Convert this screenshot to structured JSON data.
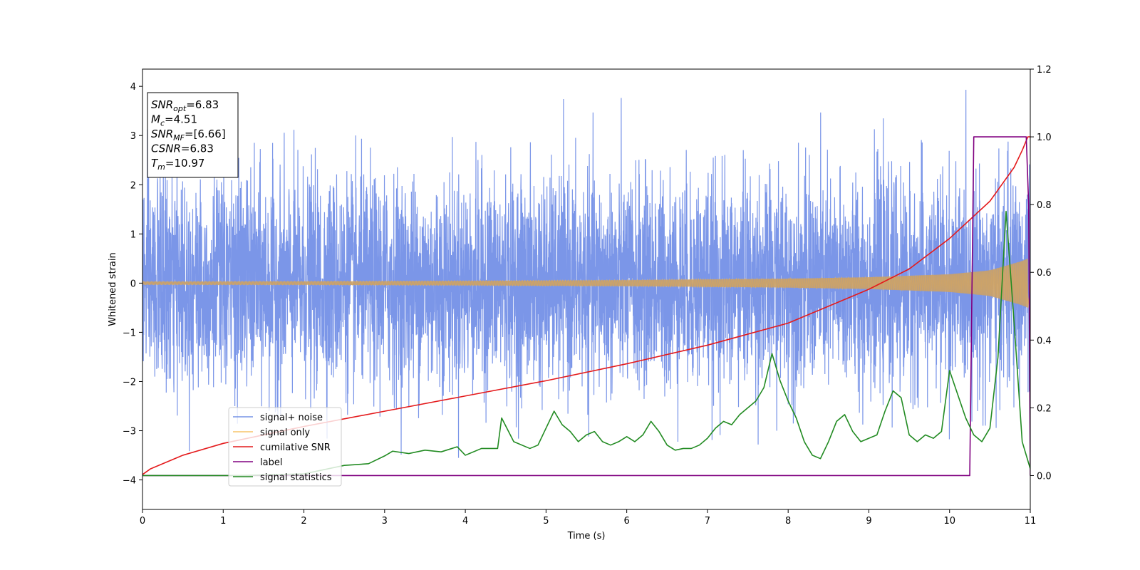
{
  "chart_data": {
    "type": "line",
    "xlabel": "Time (s)",
    "ylabel": "Whitened strain",
    "xlim": [
      0,
      11
    ],
    "ylim": [
      -4.6,
      4.35
    ],
    "y2lim": [
      -0.1,
      1.2
    ],
    "xticks": [
      "0",
      "1",
      "2",
      "3",
      "4",
      "5",
      "6",
      "7",
      "8",
      "9",
      "10",
      "11"
    ],
    "yticks": [
      "4",
      "3",
      "2",
      "1",
      "0",
      "−1",
      "−2",
      "−3",
      "−4"
    ],
    "y2ticks": [
      "1.2",
      "1.0",
      "0.8",
      "0.6",
      "0.4",
      "0.2",
      "0.0"
    ],
    "legend_position": "lower-left",
    "series": [
      {
        "name": "signal+ noise",
        "color": "#7b96e8",
        "axis": "left",
        "description_values": {
          "amplitude_typical": 1.6,
          "peak_max": 3.93,
          "peak_min": -4.15
        }
      },
      {
        "name": "signal only",
        "color": "#f5b94c",
        "axis": "left",
        "envelope": {
          "x": [
            0,
            2,
            4,
            6,
            8,
            9,
            10,
            10.5,
            10.9,
            10.97
          ],
          "amp": [
            0.03,
            0.035,
            0.045,
            0.06,
            0.09,
            0.12,
            0.18,
            0.26,
            0.45,
            0.5
          ]
        }
      },
      {
        "name": "cumilative SNR",
        "color": "#e41a1c",
        "axis": "right",
        "x": [
          0,
          0.1,
          0.5,
          1,
          2,
          3,
          4,
          5,
          6,
          7,
          8,
          9,
          9.5,
          10,
          10.5,
          10.8,
          10.9,
          10.97,
          11
        ],
        "y": [
          0.003,
          0.02,
          0.06,
          0.095,
          0.145,
          0.19,
          0.235,
          0.28,
          0.33,
          0.385,
          0.45,
          0.55,
          0.61,
          0.7,
          0.81,
          0.91,
          0.96,
          1.0,
          1.0
        ]
      },
      {
        "name": "label",
        "color": "#800080",
        "axis": "right",
        "x": [
          0,
          10.25,
          10.3,
          10.95,
          10.98,
          11
        ],
        "y": [
          0,
          0,
          1,
          1,
          0.8,
          0
        ]
      },
      {
        "name": "signal statistics",
        "color": "#228b22",
        "axis": "right",
        "x": [
          0,
          1.2,
          2,
          2.5,
          2.8,
          3.0,
          3.1,
          3.3,
          3.5,
          3.7,
          3.9,
          4.0,
          4.2,
          4.4,
          4.45,
          4.6,
          4.8,
          4.9,
          5.0,
          5.1,
          5.2,
          5.3,
          5.4,
          5.5,
          5.6,
          5.7,
          5.8,
          5.9,
          6.0,
          6.1,
          6.2,
          6.3,
          6.4,
          6.5,
          6.6,
          6.7,
          6.8,
          6.9,
          7.0,
          7.1,
          7.2,
          7.3,
          7.4,
          7.5,
          7.6,
          7.7,
          7.8,
          7.9,
          8.0,
          8.1,
          8.2,
          8.3,
          8.4,
          8.5,
          8.6,
          8.7,
          8.8,
          8.9,
          9.0,
          9.1,
          9.2,
          9.3,
          9.4,
          9.5,
          9.6,
          9.7,
          9.8,
          9.9,
          10.0,
          10.1,
          10.2,
          10.3,
          10.4,
          10.5,
          10.6,
          10.7,
          10.8,
          10.9,
          11.0
        ],
        "y": [
          0,
          0.0,
          0.005,
          0.03,
          0.035,
          0.058,
          0.072,
          0.065,
          0.075,
          0.07,
          0.085,
          0.06,
          0.08,
          0.08,
          0.17,
          0.1,
          0.08,
          0.09,
          0.14,
          0.19,
          0.15,
          0.13,
          0.1,
          0.12,
          0.13,
          0.1,
          0.09,
          0.1,
          0.115,
          0.1,
          0.12,
          0.16,
          0.13,
          0.09,
          0.075,
          0.08,
          0.08,
          0.09,
          0.11,
          0.14,
          0.16,
          0.15,
          0.18,
          0.2,
          0.22,
          0.26,
          0.36,
          0.28,
          0.22,
          0.17,
          0.1,
          0.06,
          0.05,
          0.1,
          0.16,
          0.18,
          0.13,
          0.1,
          0.11,
          0.12,
          0.19,
          0.25,
          0.23,
          0.12,
          0.1,
          0.12,
          0.11,
          0.13,
          0.31,
          0.24,
          0.17,
          0.12,
          0.1,
          0.14,
          0.35,
          0.78,
          0.45,
          0.1,
          0.02
        ]
      }
    ],
    "annotation": {
      "lines": [
        {
          "main": "SNR",
          "sub": "opt",
          "value": "=6.83"
        },
        {
          "main": "M",
          "sub": "c",
          "value": "=4.51"
        },
        {
          "main": "SNR",
          "sub": "MF",
          "value": "=[6.66]"
        },
        {
          "main": "CSNR",
          "sub": "",
          "value": "=6.83"
        },
        {
          "main": "T",
          "sub": "m",
          "value": "=10.97"
        }
      ]
    }
  }
}
